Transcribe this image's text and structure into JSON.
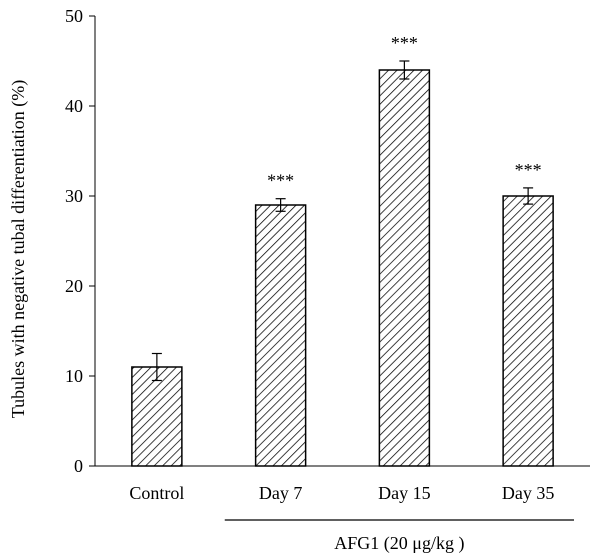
{
  "chart_data": {
    "type": "bar",
    "title": "",
    "xlabel": "",
    "ylabel": "Tubules with negative tubal differentiation (%)",
    "ylim": [
      0,
      50
    ],
    "yticks": [
      0,
      10,
      20,
      30,
      40,
      50
    ],
    "categories": [
      "Control",
      "Day 7",
      "Day 15",
      "Day 35"
    ],
    "values": [
      11,
      29,
      44,
      30
    ],
    "errors": [
      1.5,
      0.7,
      1.0,
      0.9
    ],
    "significance": [
      "",
      "***",
      "***",
      "***"
    ],
    "group_bracket": {
      "label": "AFG1 (20 μg/kg )",
      "categories": [
        "Day 7",
        "Day 15",
        "Day 35"
      ]
    },
    "bar_fill": "diagonal-hatch",
    "bar_color": "#000000",
    "background": "#ffffff",
    "grid": false,
    "legend": "none"
  }
}
